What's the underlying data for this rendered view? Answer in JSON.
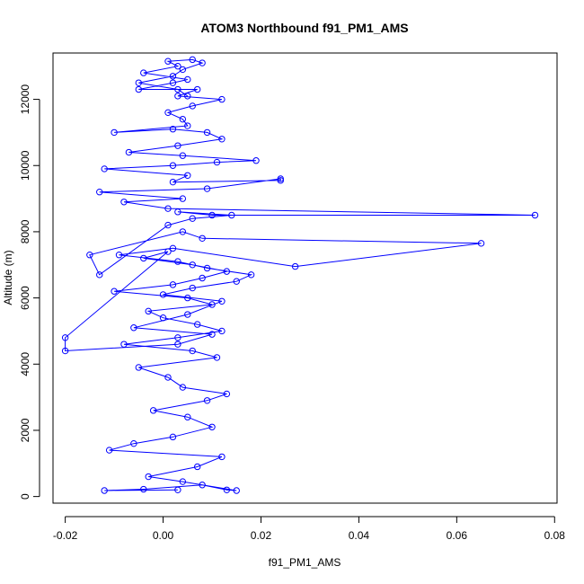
{
  "chart_data": {
    "type": "scatter",
    "title": "ATOM3 Northbound f91_PM1_AMS",
    "xlabel": "f91_PM1_AMS",
    "ylabel": "Altitude (m)",
    "xlim": [
      -0.0225,
      0.0805
    ],
    "ylim": [
      -200,
      13400
    ],
    "x_ticks": [
      -0.02,
      0.0,
      0.02,
      0.04,
      0.06,
      0.08
    ],
    "x_tick_labels": [
      "-0.02",
      "0.00",
      "0.02",
      "0.04",
      "0.06",
      "0.08"
    ],
    "y_ticks": [
      0,
      2000,
      4000,
      6000,
      8000,
      10000,
      12000
    ],
    "y_tick_labels": [
      "0",
      "2000",
      "4000",
      "6000",
      "8000",
      "10000",
      "12000"
    ],
    "marker": "open-circle",
    "connected": true,
    "grid": false,
    "color": "#0000ff",
    "series": [
      {
        "x": [
          0.003,
          -0.012,
          -0.004,
          0.008,
          0.013,
          0.015,
          0.004,
          -0.003,
          0.007,
          0.012,
          -0.011,
          -0.006,
          0.002,
          0.01,
          0.005,
          -0.002,
          0.009,
          0.013,
          0.004,
          0.001,
          -0.005,
          0.011,
          0.006,
          -0.008,
          0.003,
          0.012,
          0.007,
          0.0,
          -0.003,
          0.01,
          0.005,
          -0.01,
          0.002,
          0.008,
          0.013,
          0.006,
          -0.004,
          0.001,
          -0.02,
          -0.02,
          0.003,
          0.01,
          -0.006,
          0.005,
          0.012,
          0.0,
          0.006,
          0.015,
          0.018,
          0.009,
          0.003,
          -0.009,
          0.002,
          0.027,
          0.065,
          0.008,
          0.004,
          -0.015,
          -0.013,
          0.001,
          0.006,
          0.014,
          0.003,
          0.01,
          0.076,
          0.001,
          -0.008,
          0.004,
          -0.013,
          0.009,
          0.024,
          0.024,
          0.002,
          0.005,
          -0.012,
          0.002,
          0.011,
          0.019,
          0.004,
          -0.007,
          0.003,
          0.012,
          0.009,
          0.002,
          -0.01,
          0.005,
          0.004,
          0.001,
          0.006,
          0.012,
          0.003,
          0.007,
          -0.005,
          0.002,
          0.005,
          -0.004,
          0.003,
          0.001,
          0.006,
          0.008,
          0.004,
          0.002,
          -0.005,
          0.003,
          0.005
        ],
        "y": [
          200,
          180,
          220,
          350,
          200,
          180,
          450,
          600,
          900,
          1200,
          1400,
          1600,
          1800,
          2100,
          2400,
          2600,
          2900,
          3100,
          3300,
          3600,
          3900,
          4200,
          4400,
          4600,
          4800,
          5000,
          5200,
          5400,
          5600,
          5800,
          6000,
          6200,
          6400,
          6600,
          6800,
          7000,
          7200,
          7400,
          4800,
          4400,
          4600,
          4900,
          5100,
          5500,
          5900,
          6100,
          6300,
          6500,
          6700,
          6900,
          7100,
          7300,
          7500,
          6950,
          7650,
          7800,
          8000,
          7300,
          6700,
          8200,
          8400,
          8500,
          8600,
          8500,
          8500,
          8700,
          8900,
          9000,
          9200,
          9300,
          9600,
          9550,
          9500,
          9700,
          9900,
          10000,
          10100,
          10150,
          10300,
          10400,
          10600,
          10800,
          11000,
          11100,
          11000,
          11200,
          11400,
          11600,
          11800,
          12000,
          12100,
          12300,
          12300,
          12500,
          12600,
          12800,
          13000,
          13150,
          13200,
          13100,
          12900,
          12700,
          12500,
          12300,
          12100
        ]
      }
    ]
  }
}
